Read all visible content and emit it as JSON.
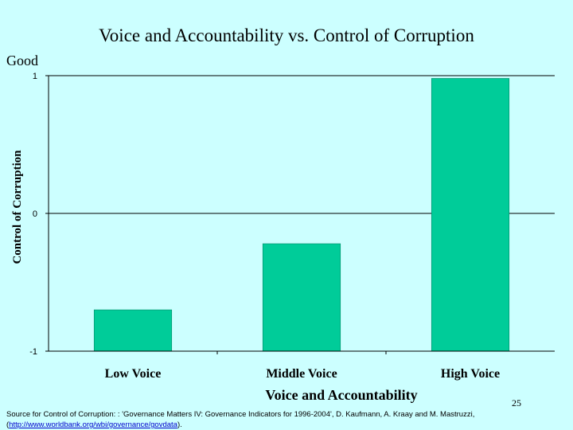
{
  "slide": {
    "good_label": "Good",
    "slide_number": "25",
    "source_text": "Source for Control of Corruption: : 'Governance Matters IV: Governance Indicators for 1996-2004', D. Kaufmann, A. Kraay and M. Mastruzzi,",
    "source_open": "(",
    "source_link": "http://www.worldbank.org/wbi/governance/govdata",
    "source_close": ")."
  },
  "chart_data": {
    "type": "bar",
    "title": "Voice and Accountability vs. Control of Corruption",
    "xlabel": "Voice and Accountability",
    "ylabel": "Control of Corruption",
    "categories": [
      "Low Voice",
      "Middle Voice",
      "High Voice"
    ],
    "values": [
      -0.7,
      -0.22,
      0.98
    ],
    "ylim": [
      -1,
      1
    ],
    "yticks": [
      -1,
      0,
      1
    ],
    "ytick_labels": [
      "-1",
      "0",
      "1"
    ],
    "grid": "horizontal",
    "legend": "none",
    "bar_color": "#00cc99"
  }
}
